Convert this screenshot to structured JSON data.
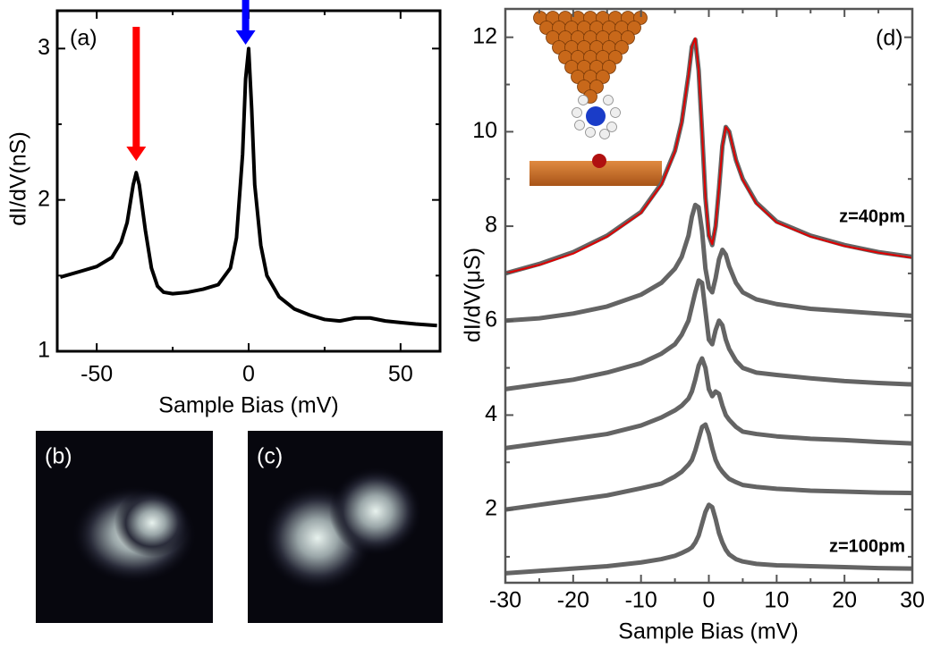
{
  "chart_data": [
    {
      "type": "line",
      "panel_label": "(a)",
      "xlabel": "Sample Bias (mV)",
      "ylabel": "dI/dV(nS)",
      "x": [
        -62,
        -55,
        -50,
        -45,
        -42,
        -40,
        -38,
        -37,
        -36,
        -34,
        -32,
        -30,
        -28,
        -25,
        -20,
        -15,
        -10,
        -6,
        -4,
        -2,
        -1,
        0,
        1,
        2,
        4,
        6,
        10,
        15,
        20,
        25,
        30,
        35,
        40,
        45,
        50,
        55,
        62
      ],
      "series": [
        {
          "color": "#000000",
          "values": [
            1.49,
            1.53,
            1.56,
            1.62,
            1.72,
            1.85,
            2.1,
            2.18,
            2.1,
            1.8,
            1.55,
            1.43,
            1.39,
            1.38,
            1.39,
            1.41,
            1.44,
            1.55,
            1.75,
            2.3,
            2.8,
            3.0,
            2.6,
            2.1,
            1.7,
            1.5,
            1.36,
            1.28,
            1.24,
            1.21,
            1.2,
            1.22,
            1.22,
            1.2,
            1.19,
            1.18,
            1.17
          ]
        }
      ],
      "xlim": [
        -63,
        63
      ],
      "ylim": [
        1,
        3.25
      ],
      "xticks": [
        -50,
        0,
        50
      ],
      "yticks": [
        1,
        2,
        3
      ],
      "xminorticks": [
        -25,
        25
      ],
      "yminorticks": [
        1.5,
        2.5
      ],
      "arrows": [
        {
          "x": -37,
          "color": "#ff0000"
        },
        {
          "x": -1,
          "color": "#0000ff"
        }
      ]
    },
    {
      "type": "line",
      "panel_label": "(d)",
      "xlabel": "Sample Bias (mV)",
      "ylabel": "dI/dV(μS)",
      "annotations": [
        "z=40pm",
        "z=100pm"
      ],
      "x": [
        -30,
        -25,
        -20,
        -15,
        -10,
        -7,
        -5,
        -4,
        -3,
        -2.5,
        -2,
        -1.5,
        -1,
        -0.5,
        0,
        0.5,
        1,
        1.5,
        2,
        2.5,
        3,
        4,
        5,
        7,
        10,
        15,
        20,
        25,
        30
      ],
      "series": [
        {
          "color": "#646464",
          "values": [
            7.0,
            7.2,
            7.45,
            7.8,
            8.3,
            8.9,
            9.6,
            10.2,
            11.2,
            11.8,
            11.95,
            11.3,
            10.0,
            8.6,
            7.8,
            7.6,
            8.0,
            8.8,
            9.7,
            10.1,
            10.0,
            9.4,
            9.0,
            8.5,
            8.1,
            7.8,
            7.6,
            7.45,
            7.35
          ]
        },
        {
          "color": "#646464",
          "values": [
            6.0,
            6.05,
            6.15,
            6.3,
            6.55,
            6.8,
            7.1,
            7.35,
            7.8,
            8.2,
            8.45,
            8.4,
            7.9,
            7.1,
            6.7,
            6.6,
            6.9,
            7.3,
            7.5,
            7.4,
            7.15,
            6.8,
            6.6,
            6.45,
            6.35,
            6.25,
            6.2,
            6.15,
            6.1
          ]
        },
        {
          "color": "#646464",
          "values": [
            4.55,
            4.65,
            4.75,
            4.9,
            5.1,
            5.3,
            5.5,
            5.7,
            6.0,
            6.3,
            6.6,
            6.85,
            6.8,
            6.2,
            5.6,
            5.5,
            5.8,
            6.0,
            5.9,
            5.6,
            5.4,
            5.15,
            5.0,
            4.9,
            4.85,
            4.78,
            4.72,
            4.68,
            4.65
          ]
        },
        {
          "color": "#646464",
          "values": [
            3.3,
            3.4,
            3.5,
            3.6,
            3.78,
            3.95,
            4.1,
            4.2,
            4.35,
            4.5,
            4.75,
            5.05,
            5.2,
            5.0,
            4.55,
            4.4,
            4.5,
            4.45,
            4.2,
            4.0,
            3.9,
            3.75,
            3.65,
            3.6,
            3.55,
            3.5,
            3.47,
            3.43,
            3.4
          ]
        },
        {
          "color": "#646464",
          "values": [
            2.0,
            2.1,
            2.2,
            2.3,
            2.45,
            2.55,
            2.7,
            2.8,
            2.95,
            3.05,
            3.25,
            3.5,
            3.75,
            3.8,
            3.6,
            3.3,
            3.05,
            2.9,
            2.8,
            2.72,
            2.65,
            2.58,
            2.52,
            2.48,
            2.44,
            2.4,
            2.38,
            2.36,
            2.35
          ]
        },
        {
          "color": "#646464",
          "values": [
            0.65,
            0.7,
            0.75,
            0.8,
            0.88,
            0.95,
            1.02,
            1.08,
            1.15,
            1.2,
            1.3,
            1.45,
            1.7,
            1.95,
            2.1,
            2.05,
            1.8,
            1.5,
            1.3,
            1.15,
            1.05,
            0.95,
            0.9,
            0.85,
            0.82,
            0.8,
            0.78,
            0.76,
            0.75
          ]
        },
        {
          "color": "#e00000",
          "values": [
            7.0,
            7.18,
            7.42,
            7.78,
            8.28,
            8.88,
            9.58,
            10.2,
            11.2,
            11.8,
            11.98,
            11.3,
            10.0,
            8.6,
            7.8,
            7.62,
            8.0,
            8.8,
            9.7,
            10.1,
            10.0,
            9.4,
            8.98,
            8.48,
            8.08,
            7.78,
            7.58,
            7.44,
            7.33
          ]
        }
      ],
      "xlim": [
        -30,
        30
      ],
      "ylim": [
        0.45,
        12.6
      ],
      "xticks": [
        -30,
        -20,
        -10,
        0,
        10,
        20,
        30
      ],
      "yticks": [
        2,
        4,
        6,
        8,
        10,
        12
      ],
      "xminorticks": [
        -25,
        -15,
        -5,
        5,
        15,
        25
      ],
      "yminorticks": [
        1,
        3,
        5,
        7,
        9,
        11
      ]
    }
  ],
  "images": [
    {
      "label": "(b)"
    },
    {
      "label": "(c)"
    }
  ]
}
